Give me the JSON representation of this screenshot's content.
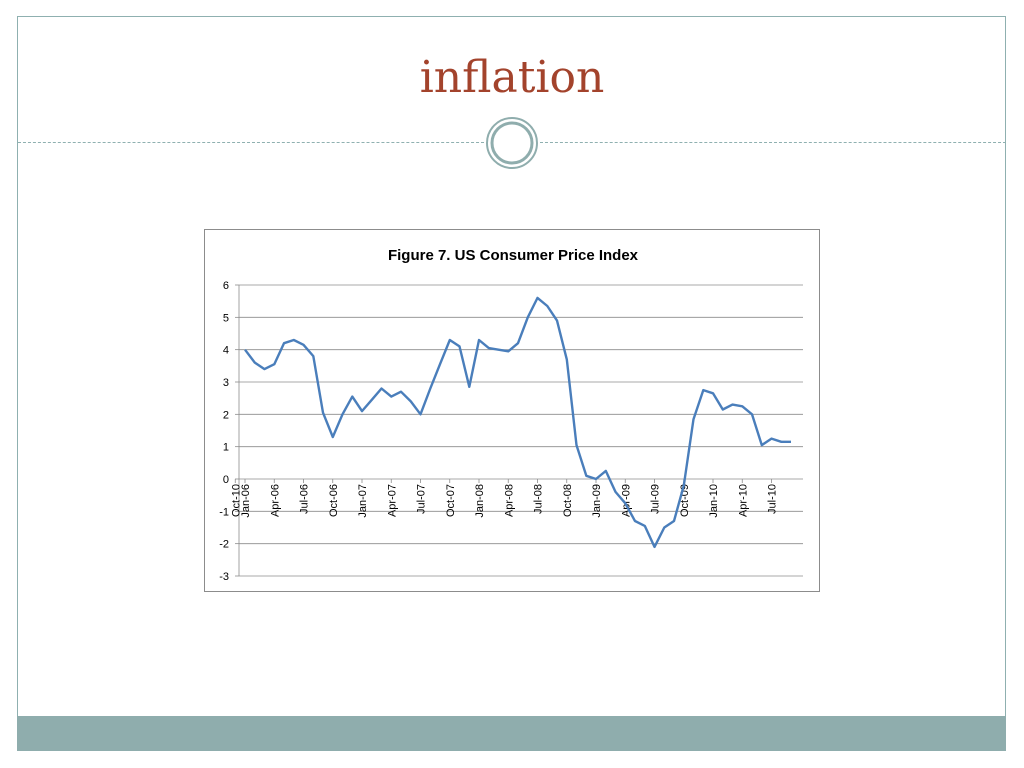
{
  "slide": {
    "title": "inflation"
  },
  "colors": {
    "title": "#a3432c",
    "accent": "#8fadad",
    "line": "#4a7ebb"
  },
  "chart_data": {
    "type": "line",
    "title": "Figure 7. US Consumer Price Index",
    "xlabel": "",
    "ylabel": "",
    "ylim": [
      -3,
      6
    ],
    "yticks": [
      -3,
      -2,
      -1,
      0,
      1,
      2,
      3,
      4,
      5,
      6
    ],
    "grid": true,
    "legend": "none",
    "x_tick_labels": [
      "Jan-06",
      "Apr-06",
      "Jul-06",
      "Oct-06",
      "Jan-07",
      "Apr-07",
      "Jul-07",
      "Oct-07",
      "Jan-08",
      "Apr-08",
      "Jul-08",
      "Oct-08",
      "Jan-09",
      "Apr-09",
      "Jul-09",
      "Oct-09",
      "Jan-10",
      "Apr-10",
      "Jul-10",
      "Oct-10"
    ],
    "x": [
      "Jan-06",
      "Feb-06",
      "Mar-06",
      "Apr-06",
      "May-06",
      "Jun-06",
      "Jul-06",
      "Aug-06",
      "Sep-06",
      "Oct-06",
      "Nov-06",
      "Dec-06",
      "Jan-07",
      "Feb-07",
      "Mar-07",
      "Apr-07",
      "May-07",
      "Jun-07",
      "Jul-07",
      "Aug-07",
      "Sep-07",
      "Oct-07",
      "Nov-07",
      "Dec-07",
      "Jan-08",
      "Feb-08",
      "Mar-08",
      "Apr-08",
      "May-08",
      "Jun-08",
      "Jul-08",
      "Aug-08",
      "Sep-08",
      "Oct-08",
      "Nov-08",
      "Dec-08",
      "Jan-09",
      "Feb-09",
      "Mar-09",
      "Apr-09",
      "May-09",
      "Jun-09",
      "Jul-09",
      "Aug-09",
      "Sep-09",
      "Oct-09",
      "Nov-09",
      "Dec-09",
      "Jan-10",
      "Feb-10",
      "Mar-10",
      "Apr-10",
      "May-10",
      "Jun-10",
      "Jul-10",
      "Aug-10",
      "Sep-10"
    ],
    "series": [
      {
        "values": [
          4.0,
          3.6,
          3.4,
          3.55,
          4.2,
          4.3,
          4.15,
          3.8,
          2.05,
          1.3,
          2.0,
          2.55,
          2.1,
          2.45,
          2.8,
          2.55,
          2.7,
          2.4,
          2.0,
          2.8,
          3.55,
          4.3,
          4.1,
          2.85,
          4.3,
          4.05,
          4.0,
          3.95,
          4.2,
          5.0,
          5.6,
          5.35,
          4.9,
          3.7,
          1.05,
          0.1,
          0.0,
          0.25,
          -0.4,
          -0.75,
          -1.3,
          -1.45,
          -2.1,
          -1.5,
          -1.3,
          -0.2,
          1.85,
          2.75,
          2.65,
          2.15,
          2.3,
          2.25,
          2.0,
          1.05,
          1.25,
          1.15,
          1.15
        ]
      }
    ]
  }
}
